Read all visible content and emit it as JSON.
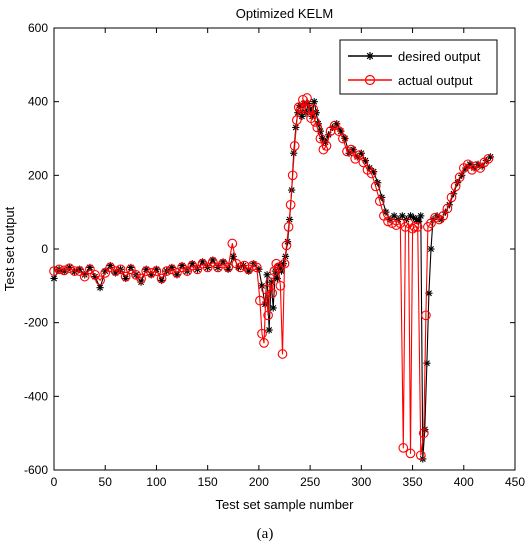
{
  "caption": "(a)",
  "chart_data": {
    "type": "line",
    "title": "Optimized KELM",
    "xlabel": "Test set sample number",
    "ylabel": "Test set output",
    "xlim": [
      0,
      450
    ],
    "ylim": [
      -600,
      600
    ],
    "xticks": [
      0,
      50,
      100,
      150,
      200,
      250,
      300,
      350,
      400,
      450
    ],
    "yticks": [
      -600,
      -400,
      -200,
      0,
      200,
      400,
      600
    ],
    "xtick_labels": [
      "0",
      "50",
      "100",
      "150",
      "200",
      "250",
      "300",
      "350",
      "400",
      "450"
    ],
    "ytick_labels": [
      "-600",
      "-400",
      "-200",
      "0",
      "200",
      "400",
      "600"
    ],
    "grid": false,
    "legend_position": "top-right",
    "series": [
      {
        "name": "desired output",
        "color": "#000000",
        "marker": "asterisk",
        "anchors": [
          [
            0,
            -80
          ],
          [
            5,
            -55
          ],
          [
            10,
            -60
          ],
          [
            15,
            -50
          ],
          [
            20,
            -62
          ],
          [
            25,
            -55
          ],
          [
            30,
            -70
          ],
          [
            35,
            -50
          ],
          [
            40,
            -75
          ],
          [
            45,
            -105
          ],
          [
            50,
            -60
          ],
          [
            55,
            -45
          ],
          [
            60,
            -65
          ],
          [
            65,
            -55
          ],
          [
            70,
            -80
          ],
          [
            75,
            -50
          ],
          [
            80,
            -70
          ],
          [
            85,
            -90
          ],
          [
            90,
            -55
          ],
          [
            95,
            -70
          ],
          [
            100,
            -55
          ],
          [
            105,
            -85
          ],
          [
            110,
            -60
          ],
          [
            115,
            -50
          ],
          [
            120,
            -70
          ],
          [
            125,
            -45
          ],
          [
            130,
            -60
          ],
          [
            135,
            -40
          ],
          [
            140,
            -55
          ],
          [
            145,
            -35
          ],
          [
            150,
            -50
          ],
          [
            155,
            -30
          ],
          [
            160,
            -50
          ],
          [
            165,
            -35
          ],
          [
            170,
            -55
          ],
          [
            175,
            -20
          ],
          [
            180,
            -50
          ],
          [
            185,
            -45
          ],
          [
            190,
            -60
          ],
          [
            195,
            -40
          ],
          [
            200,
            -55
          ],
          [
            203,
            -100
          ],
          [
            206,
            -150
          ],
          [
            208,
            -70
          ],
          [
            210,
            -220
          ],
          [
            212,
            -90
          ],
          [
            214,
            -160
          ],
          [
            216,
            -60
          ],
          [
            218,
            -80
          ],
          [
            220,
            -45
          ],
          [
            222,
            -60
          ],
          [
            224,
            -40
          ],
          [
            226,
            -20
          ],
          [
            228,
            20
          ],
          [
            230,
            80
          ],
          [
            232,
            160
          ],
          [
            234,
            260
          ],
          [
            236,
            330
          ],
          [
            238,
            370
          ],
          [
            240,
            390
          ],
          [
            242,
            360
          ],
          [
            244,
            395
          ],
          [
            246,
            370
          ],
          [
            248,
            395
          ],
          [
            250,
            380
          ],
          [
            252,
            360
          ],
          [
            254,
            400
          ],
          [
            256,
            370
          ],
          [
            258,
            340
          ],
          [
            260,
            320
          ],
          [
            262,
            300
          ],
          [
            265,
            290
          ],
          [
            268,
            310
          ],
          [
            272,
            330
          ],
          [
            276,
            340
          ],
          [
            280,
            320
          ],
          [
            284,
            300
          ],
          [
            288,
            260
          ],
          [
            292,
            270
          ],
          [
            296,
            250
          ],
          [
            300,
            260
          ],
          [
            304,
            240
          ],
          [
            308,
            220
          ],
          [
            312,
            210
          ],
          [
            316,
            180
          ],
          [
            320,
            140
          ],
          [
            324,
            100
          ],
          [
            328,
            80
          ],
          [
            332,
            90
          ],
          [
            336,
            80
          ],
          [
            340,
            90
          ],
          [
            344,
            80
          ],
          [
            348,
            90
          ],
          [
            351,
            85
          ],
          [
            354,
            80
          ],
          [
            356,
            75
          ],
          [
            358,
            90
          ],
          [
            360,
            -570
          ],
          [
            362,
            -490
          ],
          [
            364,
            -310
          ],
          [
            366,
            -120
          ],
          [
            368,
            0
          ],
          [
            370,
            80
          ],
          [
            374,
            90
          ],
          [
            378,
            80
          ],
          [
            382,
            100
          ],
          [
            386,
            120
          ],
          [
            390,
            150
          ],
          [
            394,
            180
          ],
          [
            398,
            200
          ],
          [
            402,
            220
          ],
          [
            406,
            230
          ],
          [
            410,
            220
          ],
          [
            414,
            230
          ],
          [
            418,
            225
          ],
          [
            422,
            240
          ],
          [
            426,
            250
          ]
        ]
      },
      {
        "name": "actual output",
        "color": "#ff0000",
        "marker": "circle",
        "anchors": [
          [
            0,
            -60
          ],
          [
            5,
            -55
          ],
          [
            10,
            -58
          ],
          [
            15,
            -52
          ],
          [
            20,
            -60
          ],
          [
            25,
            -60
          ],
          [
            30,
            -75
          ],
          [
            35,
            -55
          ],
          [
            40,
            -70
          ],
          [
            45,
            -85
          ],
          [
            50,
            -65
          ],
          [
            55,
            -50
          ],
          [
            60,
            -60
          ],
          [
            65,
            -55
          ],
          [
            70,
            -75
          ],
          [
            75,
            -55
          ],
          [
            80,
            -70
          ],
          [
            85,
            -80
          ],
          [
            90,
            -60
          ],
          [
            95,
            -65
          ],
          [
            100,
            -60
          ],
          [
            105,
            -80
          ],
          [
            110,
            -60
          ],
          [
            115,
            -55
          ],
          [
            120,
            -65
          ],
          [
            125,
            -50
          ],
          [
            130,
            -60
          ],
          [
            135,
            -45
          ],
          [
            140,
            -55
          ],
          [
            145,
            -40
          ],
          [
            150,
            -50
          ],
          [
            155,
            -35
          ],
          [
            160,
            -50
          ],
          [
            165,
            -40
          ],
          [
            170,
            -50
          ],
          [
            174,
            15
          ],
          [
            178,
            -40
          ],
          [
            182,
            -50
          ],
          [
            186,
            -45
          ],
          [
            190,
            -55
          ],
          [
            194,
            -45
          ],
          [
            198,
            -50
          ],
          [
            201,
            -140
          ],
          [
            203,
            -230
          ],
          [
            205,
            -255
          ],
          [
            207,
            -110
          ],
          [
            209,
            -180
          ],
          [
            211,
            -90
          ],
          [
            213,
            -120
          ],
          [
            215,
            -60
          ],
          [
            217,
            -40
          ],
          [
            219,
            -50
          ],
          [
            221,
            -100
          ],
          [
            223,
            -285
          ],
          [
            225,
            -40
          ],
          [
            227,
            10
          ],
          [
            229,
            60
          ],
          [
            231,
            120
          ],
          [
            233,
            200
          ],
          [
            235,
            280
          ],
          [
            237,
            350
          ],
          [
            239,
            385
          ],
          [
            241,
            380
          ],
          [
            243,
            405
          ],
          [
            245,
            380
          ],
          [
            247,
            410
          ],
          [
            249,
            380
          ],
          [
            251,
            355
          ],
          [
            253,
            380
          ],
          [
            255,
            345
          ],
          [
            257,
            330
          ],
          [
            260,
            300
          ],
          [
            263,
            270
          ],
          [
            266,
            280
          ],
          [
            270,
            320
          ],
          [
            274,
            335
          ],
          [
            278,
            320
          ],
          [
            282,
            300
          ],
          [
            286,
            265
          ],
          [
            290,
            270
          ],
          [
            294,
            245
          ],
          [
            298,
            255
          ],
          [
            302,
            235
          ],
          [
            306,
            215
          ],
          [
            310,
            205
          ],
          [
            314,
            170
          ],
          [
            318,
            130
          ],
          [
            322,
            90
          ],
          [
            326,
            75
          ],
          [
            330,
            70
          ],
          [
            334,
            65
          ],
          [
            338,
            70
          ],
          [
            341,
            -540
          ],
          [
            343,
            60
          ],
          [
            346,
            70
          ],
          [
            348,
            -555
          ],
          [
            350,
            55
          ],
          [
            352,
            60
          ],
          [
            355,
            60
          ],
          [
            358,
            -560
          ],
          [
            361,
            -500
          ],
          [
            363,
            -180
          ],
          [
            365,
            60
          ],
          [
            368,
            70
          ],
          [
            372,
            85
          ],
          [
            376,
            80
          ],
          [
            380,
            90
          ],
          [
            384,
            110
          ],
          [
            388,
            140
          ],
          [
            392,
            170
          ],
          [
            396,
            195
          ],
          [
            400,
            220
          ],
          [
            404,
            230
          ],
          [
            408,
            215
          ],
          [
            412,
            225
          ],
          [
            416,
            220
          ],
          [
            420,
            235
          ],
          [
            424,
            245
          ]
        ]
      }
    ]
  }
}
